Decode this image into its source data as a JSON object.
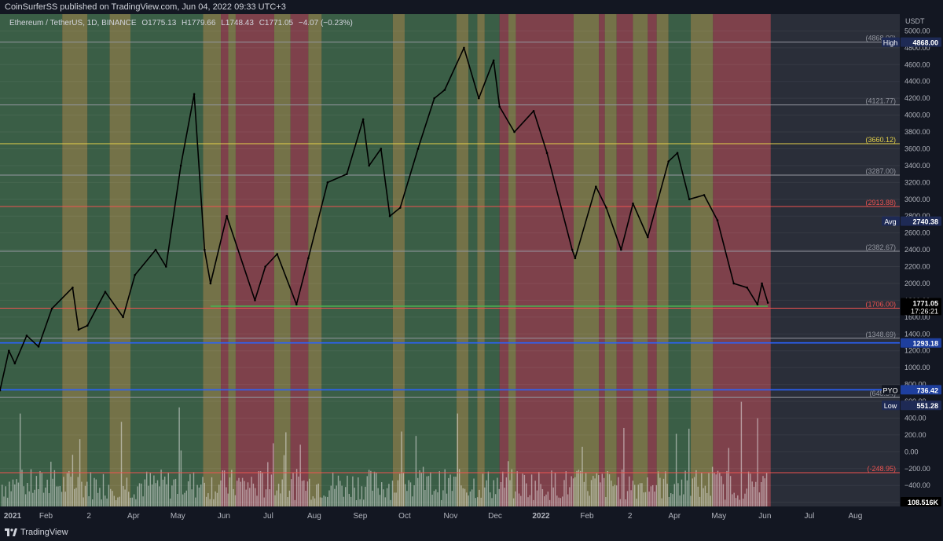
{
  "header": {
    "published": "CoinSurferSS published on TradingView.com, Jun 04, 2022 09:33 UTC+3"
  },
  "footer": {
    "brand": "TradingView"
  },
  "legend": {
    "symbol": "Ethereum / TetherUS, 1D, BINANCE",
    "open": "O1775.13",
    "high": "H1779.66",
    "low": "L1748.43",
    "close": "C1771.05",
    "change": "−4.07 (−0.23%)"
  },
  "colors": {
    "green_zone": "#4a7a55",
    "yellow_zone": "#9a9558",
    "red_zone": "#a8525c",
    "grey_zone": "#2a2e39",
    "blue_level": "#1e3f9e",
    "red_level": "#ef5350",
    "yellow_level": "#e6d34a",
    "green_level": "#4caf50"
  },
  "chart_data": {
    "type": "line",
    "axis_unit": "USDT",
    "x_domain": [
      "2021-01-01",
      "2022-08-31"
    ],
    "y_range": [
      -650,
      5200
    ],
    "x_ticks": [
      {
        "label": "2021",
        "date": "2021-01-01"
      },
      {
        "label": "Feb",
        "date": "2021-02-01"
      },
      {
        "label": "2",
        "date": "2021-03-02"
      },
      {
        "label": "Apr",
        "date": "2021-04-01"
      },
      {
        "label": "May",
        "date": "2021-05-01"
      },
      {
        "label": "Jun",
        "date": "2021-06-01"
      },
      {
        "label": "Jul",
        "date": "2021-07-01"
      },
      {
        "label": "Aug",
        "date": "2021-08-01"
      },
      {
        "label": "Sep",
        "date": "2021-09-01"
      },
      {
        "label": "Oct",
        "date": "2021-10-01"
      },
      {
        "label": "Nov",
        "date": "2021-11-01"
      },
      {
        "label": "Dec",
        "date": "2021-12-01"
      },
      {
        "label": "2022",
        "date": "2022-01-01"
      },
      {
        "label": "Feb",
        "date": "2022-02-01"
      },
      {
        "label": "2",
        "date": "2022-03-02"
      },
      {
        "label": "Apr",
        "date": "2022-04-01"
      },
      {
        "label": "May",
        "date": "2022-05-01"
      },
      {
        "label": "Jun",
        "date": "2022-06-01"
      },
      {
        "label": "Jul",
        "date": "2022-07-01"
      },
      {
        "label": "Aug",
        "date": "2022-08-01"
      }
    ],
    "y_ticks": [
      5000,
      4800,
      4600,
      4400,
      4200,
      4000,
      3800,
      3600,
      3400,
      3200,
      3000,
      2800,
      2600,
      2400,
      2200,
      2000,
      1800,
      1600,
      1400,
      1200,
      1000,
      800,
      600,
      400,
      200,
      0,
      -200,
      -400,
      -600
    ],
    "price_series": [
      {
        "date": "2021-01-01",
        "price": 730
      },
      {
        "date": "2021-01-07",
        "price": 1200
      },
      {
        "date": "2021-01-11",
        "price": 1050
      },
      {
        "date": "2021-01-19",
        "price": 1380
      },
      {
        "date": "2021-01-27",
        "price": 1250
      },
      {
        "date": "2021-02-05",
        "price": 1700
      },
      {
        "date": "2021-02-19",
        "price": 1950
      },
      {
        "date": "2021-02-23",
        "price": 1450
      },
      {
        "date": "2021-03-01",
        "price": 1500
      },
      {
        "date": "2021-03-13",
        "price": 1900
      },
      {
        "date": "2021-03-25",
        "price": 1600
      },
      {
        "date": "2021-04-02",
        "price": 2100
      },
      {
        "date": "2021-04-16",
        "price": 2400
      },
      {
        "date": "2021-04-23",
        "price": 2200
      },
      {
        "date": "2021-05-03",
        "price": 3400
      },
      {
        "date": "2021-05-12",
        "price": 4250
      },
      {
        "date": "2021-05-19",
        "price": 2400
      },
      {
        "date": "2021-05-23",
        "price": 2000
      },
      {
        "date": "2021-06-03",
        "price": 2800
      },
      {
        "date": "2021-06-22",
        "price": 1800
      },
      {
        "date": "2021-06-29",
        "price": 2200
      },
      {
        "date": "2021-07-07",
        "price": 2350
      },
      {
        "date": "2021-07-20",
        "price": 1750
      },
      {
        "date": "2021-07-28",
        "price": 2300
      },
      {
        "date": "2021-08-10",
        "price": 3200
      },
      {
        "date": "2021-08-23",
        "price": 3300
      },
      {
        "date": "2021-09-03",
        "price": 3950
      },
      {
        "date": "2021-09-07",
        "price": 3400
      },
      {
        "date": "2021-09-15",
        "price": 3600
      },
      {
        "date": "2021-09-21",
        "price": 2800
      },
      {
        "date": "2021-09-28",
        "price": 2900
      },
      {
        "date": "2021-10-10",
        "price": 3600
      },
      {
        "date": "2021-10-21",
        "price": 4200
      },
      {
        "date": "2021-10-28",
        "price": 4300
      },
      {
        "date": "2021-11-10",
        "price": 4800
      },
      {
        "date": "2021-11-20",
        "price": 4200
      },
      {
        "date": "2021-11-30",
        "price": 4650
      },
      {
        "date": "2021-12-04",
        "price": 4100
      },
      {
        "date": "2021-12-14",
        "price": 3800
      },
      {
        "date": "2021-12-27",
        "price": 4050
      },
      {
        "date": "2022-01-05",
        "price": 3550
      },
      {
        "date": "2022-01-22",
        "price": 2400
      },
      {
        "date": "2022-01-24",
        "price": 2300
      },
      {
        "date": "2022-02-07",
        "price": 3150
      },
      {
        "date": "2022-02-14",
        "price": 2900
      },
      {
        "date": "2022-02-24",
        "price": 2400
      },
      {
        "date": "2022-03-04",
        "price": 2950
      },
      {
        "date": "2022-03-14",
        "price": 2550
      },
      {
        "date": "2022-03-28",
        "price": 3450
      },
      {
        "date": "2022-04-03",
        "price": 3550
      },
      {
        "date": "2022-04-11",
        "price": 3000
      },
      {
        "date": "2022-04-21",
        "price": 3050
      },
      {
        "date": "2022-04-30",
        "price": 2750
      },
      {
        "date": "2022-05-11",
        "price": 2000
      },
      {
        "date": "2022-05-20",
        "price": 1950
      },
      {
        "date": "2022-05-27",
        "price": 1750
      },
      {
        "date": "2022-05-30",
        "price": 2000
      },
      {
        "date": "2022-06-03",
        "price": 1771
      }
    ],
    "horizontal_levels": [
      {
        "price": 4868.0,
        "label": "(4868.00)",
        "color": "#9598a1"
      },
      {
        "price": 4121.77,
        "label": "(4121.77)",
        "color": "#9598a1"
      },
      {
        "price": 3660.12,
        "label": "(3660.12)",
        "color": "#e6d34a"
      },
      {
        "price": 3287.0,
        "label": "(3287.00)",
        "color": "#9598a1"
      },
      {
        "price": 2913.88,
        "label": "(2913.88)",
        "color": "#ef5350"
      },
      {
        "price": 2382.67,
        "label": "(2382.67)",
        "color": "#9598a1"
      },
      {
        "price": 1706.0,
        "label": "(1706.00)",
        "color": "#ef5350"
      },
      {
        "price": 1348.69,
        "label": "(1348.69)",
        "color": "#9598a1"
      },
      {
        "price": 1293.18,
        "label": "",
        "color": "#2962ff"
      },
      {
        "price": 736.42,
        "label": "",
        "color": "#2962ff"
      },
      {
        "price": 645.34,
        "label": "(645.34)",
        "color": "#9598a1"
      },
      {
        "price": -248.95,
        "label": "(-248.95)",
        "color": "#ef5350"
      }
    ],
    "support_line": {
      "price": 1730,
      "from": "2021-05-23",
      "to": "2022-06-03"
    },
    "axis_badges": [
      {
        "tag": "High",
        "value": "4868.00",
        "price": 4868.0
      },
      {
        "tag": "Avg",
        "value": "2740.38",
        "price": 2740.38
      },
      {
        "tag": "",
        "value": "1771.05",
        "sub": "17:26:21",
        "price": 1771.05
      },
      {
        "tag": "",
        "value": "1293.18",
        "price": 1293.18
      },
      {
        "tag": "PYO",
        "value": "736.42",
        "price": 736.42
      },
      {
        "tag": "Low",
        "value": "551.28",
        "price": 551.28
      },
      {
        "tag": "",
        "value": "108.516K",
        "price": -650
      }
    ],
    "zones": [
      {
        "from": "2021-01-01",
        "to": "2021-02-12",
        "type": "green"
      },
      {
        "from": "2021-02-12",
        "to": "2021-03-01",
        "type": "yellow"
      },
      {
        "from": "2021-03-01",
        "to": "2021-03-16",
        "type": "green"
      },
      {
        "from": "2021-03-16",
        "to": "2021-03-30",
        "type": "yellow"
      },
      {
        "from": "2021-03-30",
        "to": "2021-05-18",
        "type": "green"
      },
      {
        "from": "2021-05-18",
        "to": "2021-05-30",
        "type": "yellow"
      },
      {
        "from": "2021-05-30",
        "to": "2021-06-04",
        "type": "red"
      },
      {
        "from": "2021-06-04",
        "to": "2021-06-09",
        "type": "yellow"
      },
      {
        "from": "2021-06-09",
        "to": "2021-07-05",
        "type": "red"
      },
      {
        "from": "2021-07-05",
        "to": "2021-07-16",
        "type": "yellow"
      },
      {
        "from": "2021-07-16",
        "to": "2021-07-28",
        "type": "red"
      },
      {
        "from": "2021-07-28",
        "to": "2021-08-06",
        "type": "yellow"
      },
      {
        "from": "2021-08-06",
        "to": "2021-09-23",
        "type": "green"
      },
      {
        "from": "2021-09-23",
        "to": "2021-10-01",
        "type": "yellow"
      },
      {
        "from": "2021-10-01",
        "to": "2021-11-05",
        "type": "green"
      },
      {
        "from": "2021-11-05",
        "to": "2021-11-13",
        "type": "yellow"
      },
      {
        "from": "2021-11-13",
        "to": "2021-11-19",
        "type": "green"
      },
      {
        "from": "2021-11-19",
        "to": "2021-11-24",
        "type": "yellow"
      },
      {
        "from": "2021-11-24",
        "to": "2021-12-04",
        "type": "green"
      },
      {
        "from": "2021-12-04",
        "to": "2021-12-10",
        "type": "red"
      },
      {
        "from": "2021-12-10",
        "to": "2021-12-15",
        "type": "yellow"
      },
      {
        "from": "2021-12-15",
        "to": "2022-01-23",
        "type": "red"
      },
      {
        "from": "2022-01-23",
        "to": "2022-02-09",
        "type": "yellow"
      },
      {
        "from": "2022-02-09",
        "to": "2022-02-13",
        "type": "red"
      },
      {
        "from": "2022-02-13",
        "to": "2022-02-21",
        "type": "yellow"
      },
      {
        "from": "2022-02-21",
        "to": "2022-03-04",
        "type": "red"
      },
      {
        "from": "2022-03-04",
        "to": "2022-03-14",
        "type": "yellow"
      },
      {
        "from": "2022-03-14",
        "to": "2022-03-20",
        "type": "red"
      },
      {
        "from": "2022-03-20",
        "to": "2022-03-28",
        "type": "yellow"
      },
      {
        "from": "2022-03-28",
        "to": "2022-04-12",
        "type": "green"
      },
      {
        "from": "2022-04-12",
        "to": "2022-04-27",
        "type": "yellow"
      },
      {
        "from": "2022-04-27",
        "to": "2022-06-05",
        "type": "red"
      },
      {
        "from": "2022-06-05",
        "to": "2022-08-31",
        "type": "grey"
      }
    ]
  }
}
